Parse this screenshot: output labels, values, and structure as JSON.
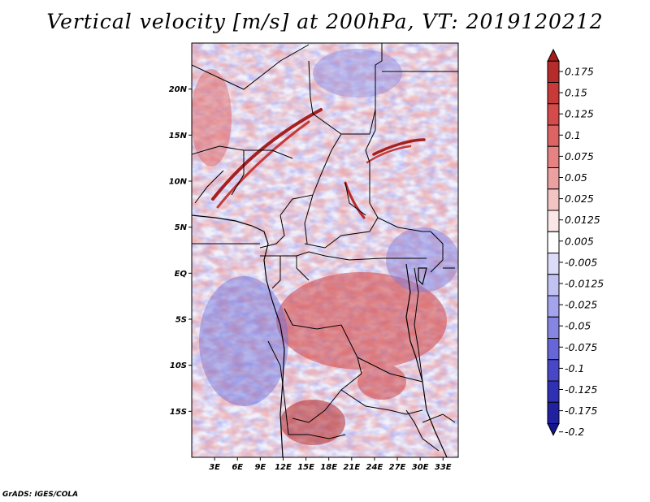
{
  "title": "Vertical velocity [m/s] at 200hPa, VT: 2019120212",
  "credit": "GrADS: IGES/COLA",
  "map": {
    "lon_range": [
      0,
      35
    ],
    "lat_range": [
      -20,
      25
    ],
    "lon_ticks": [
      "3E",
      "6E",
      "9E",
      "12E",
      "15E",
      "18E",
      "21E",
      "24E",
      "27E",
      "30E",
      "33E"
    ],
    "lat_ticks": [
      "20N",
      "15N",
      "10N",
      "5N",
      "EQ",
      "5S",
      "10S",
      "15S"
    ]
  },
  "colorbar": {
    "labels": [
      "0.175",
      "0.15",
      "0.125",
      "0.1",
      "0.075",
      "0.05",
      "0.025",
      "0.0125",
      "0.005",
      "-0.005",
      "-0.0125",
      "-0.025",
      "-0.05",
      "-0.075",
      "-0.1",
      "-0.125",
      "-0.175",
      "-0.2"
    ],
    "colors_top_to_bottom": [
      "#a51c1c",
      "#b62c2c",
      "#c83a3a",
      "#d54a4a",
      "#de6464",
      "#e68282",
      "#eda0a0",
      "#f4c4c4",
      "#fae6e6",
      "#ffffff",
      "#dcdcf8",
      "#c2c2f2",
      "#a4a4ec",
      "#8686e2",
      "#6666d8",
      "#4848c6",
      "#3030b4",
      "#2020a0",
      "#141490"
    ]
  }
}
